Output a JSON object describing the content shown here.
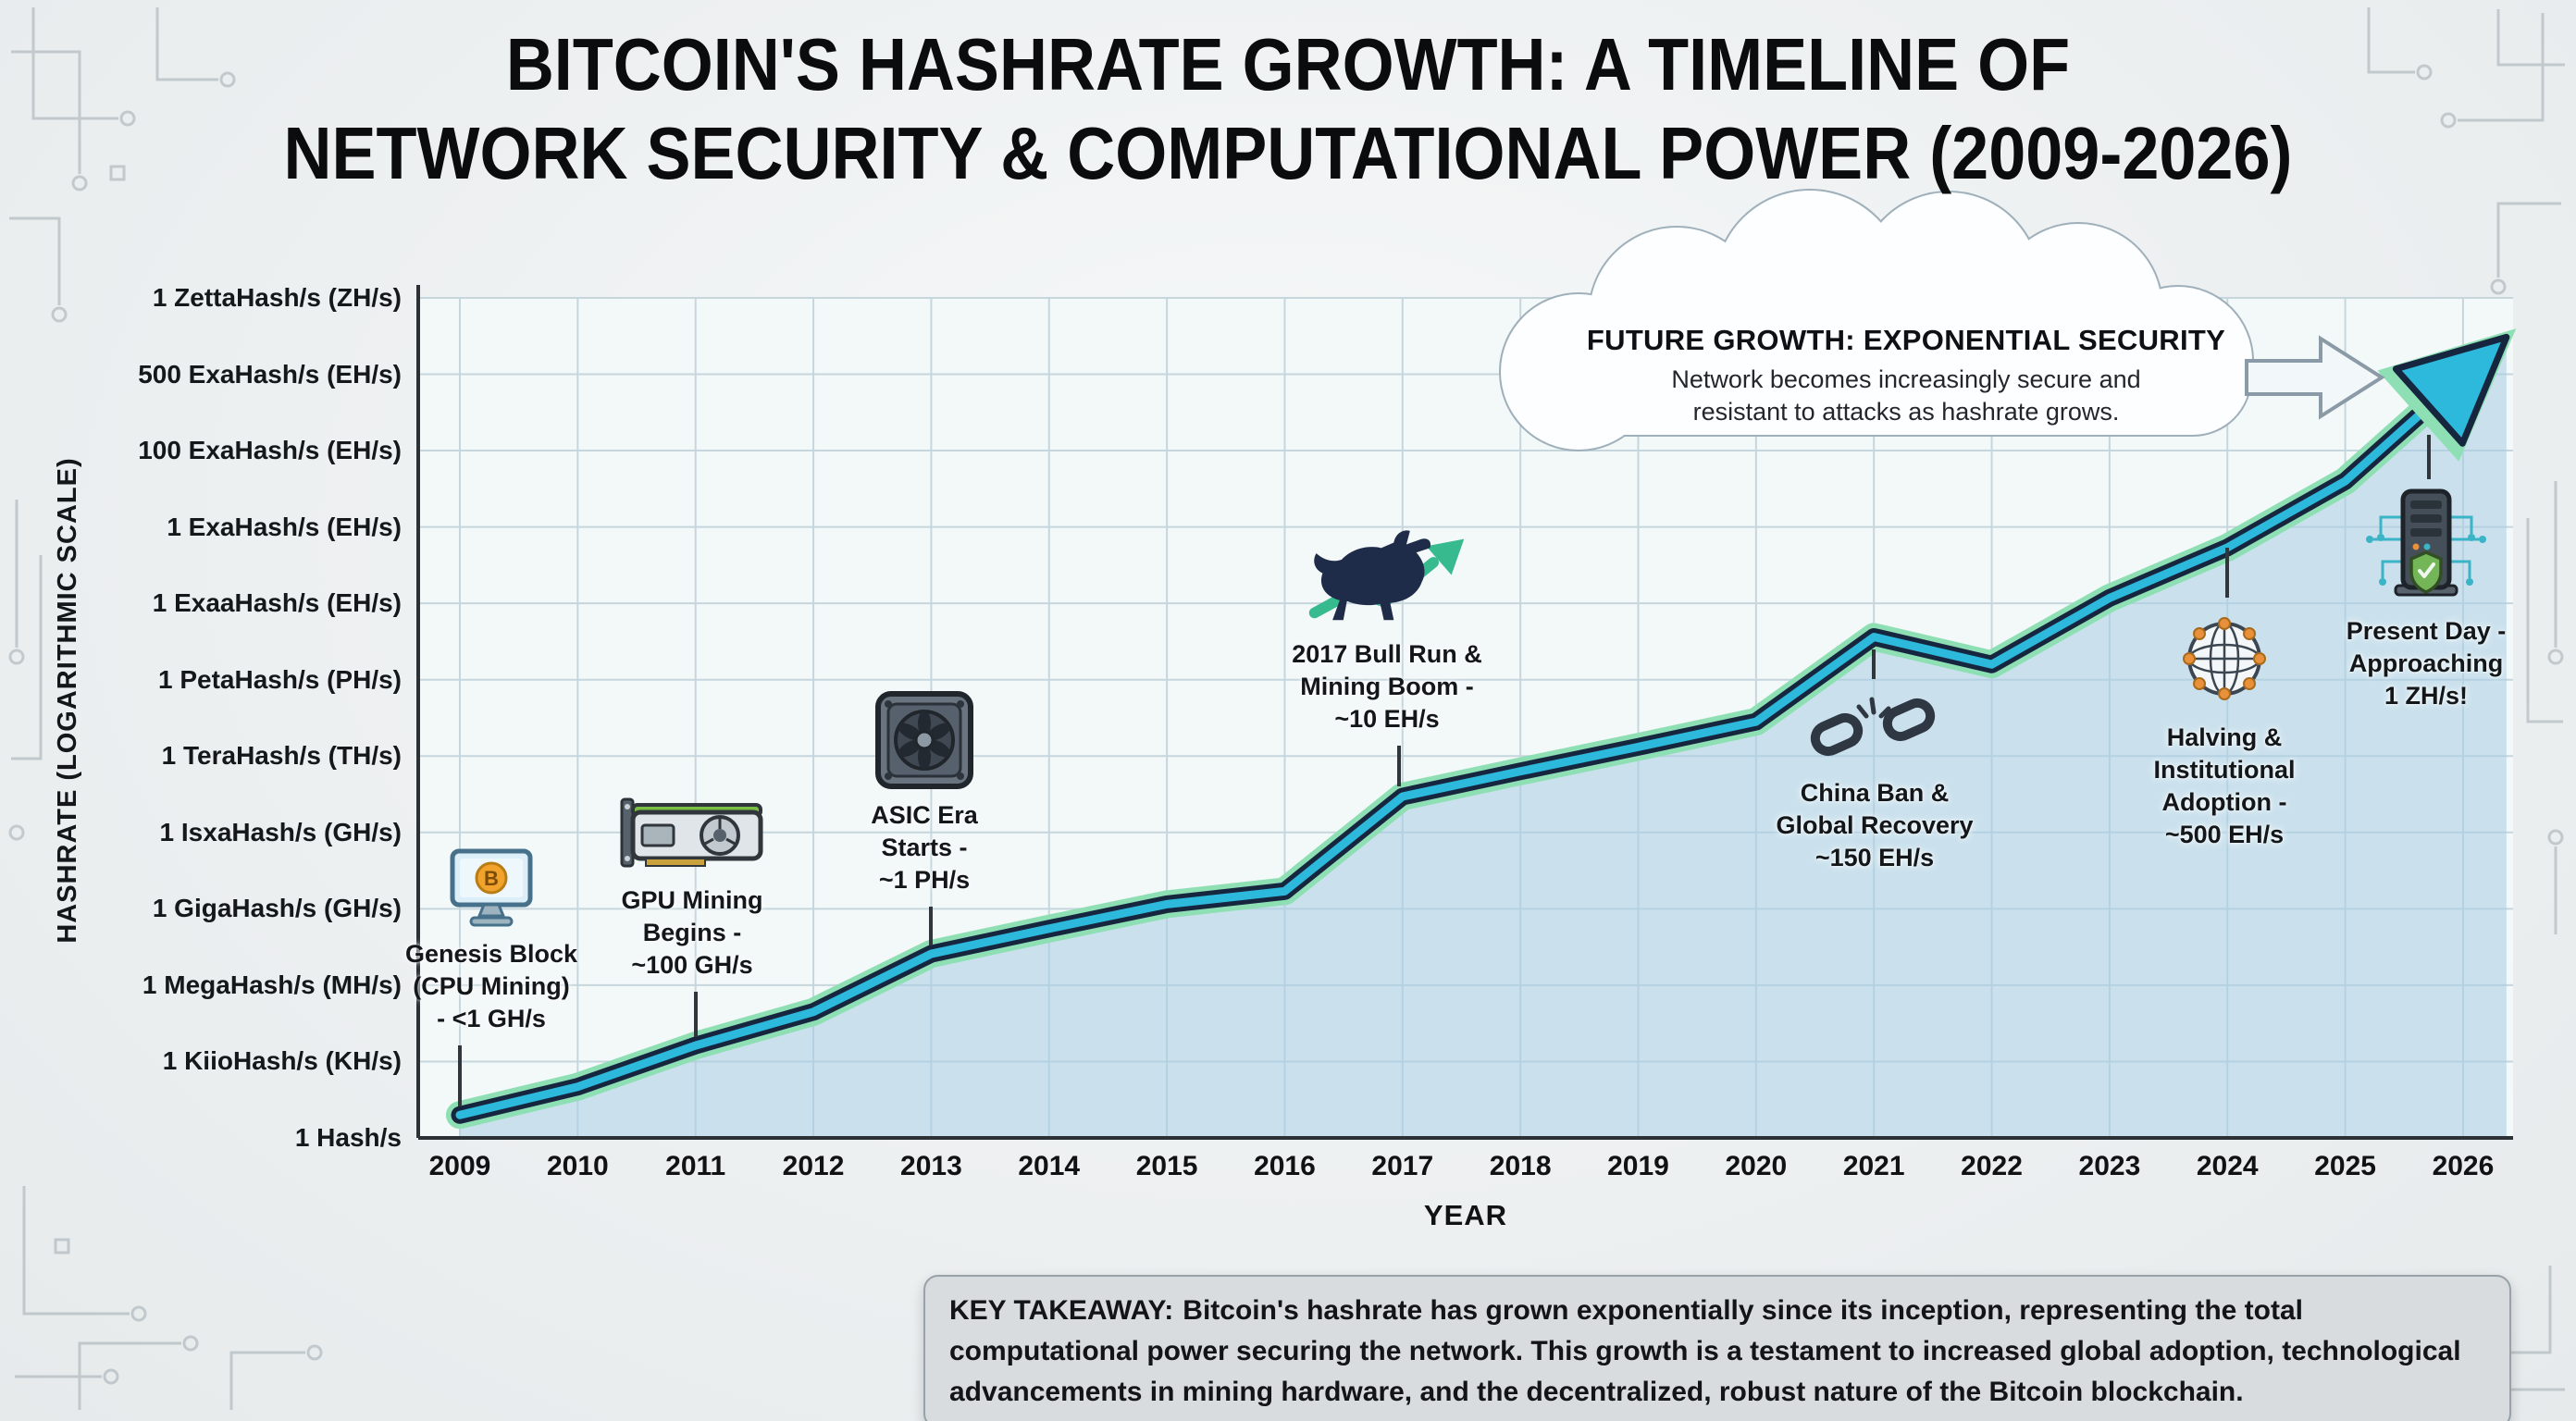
{
  "title": {
    "line1": "BITCOIN'S HASHRATE GROWTH: A TIMELINE OF",
    "line2": "NETWORK SECURITY & COMPUTATIONAL POWER (2009-2026)"
  },
  "y_axis_label": "HASHRATE (LOGARITHMIC SCALE)",
  "x_axis_label": "YEAR",
  "chart_data": {
    "type": "line",
    "title": "Bitcoin's Hashrate Growth: A Timeline of Network Security & Computational Power (2009-2026)",
    "xlabel": "YEAR",
    "ylabel": "HASHRATE (LOGARITHMIC SCALE)",
    "x_ticks": [
      "2009",
      "2010",
      "2011",
      "2012",
      "2013",
      "2014",
      "2015",
      "2016",
      "2017",
      "2018",
      "2019",
      "2020",
      "2021",
      "2022",
      "2023",
      "2024",
      "2025",
      "2026"
    ],
    "y_ticks": [
      "1 Hash/s",
      "1 KiioHash/s (KH/s)",
      "1 MegaHash/s (MH/s)",
      "1 GigaHash/s (GH/s)",
      "1 IsxaHash/s (GH/s)",
      "1 TeraHash/s (TH/s)",
      "1 PetaHash/s (PH/s)",
      "1 ExaaHash/s (EH/s)",
      "1 ExaHash/s (EH/s)",
      "100 ExaHash/s (EH/s)",
      "500 ExaHash/s (EH/s)",
      "1 ZettaHash/s (ZH/s)"
    ],
    "y_ticks_order": "bottom_to_top; level index 0 = 1 Hash/s baseline, 11 = 1 ZettaHash/s top gridline",
    "grid": true,
    "legend": "none",
    "points": [
      {
        "year": 2009,
        "level": 0.3
      },
      {
        "year": 2010,
        "level": 0.67
      },
      {
        "year": 2011,
        "level": 1.21
      },
      {
        "year": 2012,
        "level": 1.65
      },
      {
        "year": 2013,
        "level": 2.41
      },
      {
        "year": 2014,
        "level": 2.74
      },
      {
        "year": 2015,
        "level": 3.06
      },
      {
        "year": 2016,
        "level": 3.23
      },
      {
        "year": 2017,
        "level": 4.47
      },
      {
        "year": 2018,
        "level": 4.8
      },
      {
        "year": 2019,
        "level": 5.12
      },
      {
        "year": 2020,
        "level": 5.45
      },
      {
        "year": 2021,
        "level": 6.56
      },
      {
        "year": 2022,
        "level": 6.2
      },
      {
        "year": 2023,
        "level": 7.07
      },
      {
        "year": 2024,
        "level": 7.73
      },
      {
        "year": 2025,
        "level": 8.6
      },
      {
        "year": 2025.9,
        "level": 9.84
      }
    ],
    "annotated_values": {
      "2009": "<1 GH/s (Genesis Block, CPU mining)",
      "2011": "~100 GH/s (GPU mining begins)",
      "2013": "~1 PH/s (ASIC era starts)",
      "2017": "~10 EH/s (bull run & mining boom)",
      "2021": "~150 EH/s (China ban & global recovery dip)",
      "2024": "~500 EH/s (halving & institutional adoption)",
      "2026": "approaching 1 ZH/s (present day, arrow tip)"
    },
    "style": {
      "grid": "#c6d6dd",
      "plot_bg": "#f3f8f9",
      "area_fill": "rgba(168,205,227,0.55)",
      "line_glow": "#8ee0b4",
      "line_dark": "#17263f",
      "line_core": "#2cb9dc",
      "axis": "#2c3136"
    }
  },
  "milestones": [
    {
      "id": "genesis-block",
      "icon": "cpu-monitor-icon",
      "lines": [
        "Genesis Block",
        "(CPU Mining)",
        "- <1 GH/s"
      ]
    },
    {
      "id": "gpu-mining",
      "icon": "gpu-icon",
      "lines": [
        "GPU Mining",
        "Begins -",
        "~100 GH/s"
      ]
    },
    {
      "id": "asic-era",
      "icon": "asic-miner-icon",
      "lines": [
        "ASIC Era",
        "Starts -",
        "~1 PH/s"
      ]
    },
    {
      "id": "bull-run-2017",
      "icon": "bull-icon",
      "lines": [
        "2017 Bull Run &",
        "Mining Boom -",
        "~10 EH/s"
      ]
    },
    {
      "id": "china-ban",
      "icon": "broken-chain-icon",
      "lines": [
        "China Ban &",
        "Global Recovery",
        "~150 EH/s"
      ]
    },
    {
      "id": "halving-adoption",
      "icon": "globe-network-icon",
      "lines": [
        "Halving &",
        "Institutional",
        "Adoption -",
        "~500 EH/s"
      ]
    },
    {
      "id": "present-day",
      "icon": "server-shield-icon",
      "lines": [
        "Present Day -",
        "Approaching",
        "1 ZH/s!"
      ]
    }
  ],
  "cloud_callout": {
    "title": "FUTURE GROWTH: EXPONENTIAL SECURITY",
    "body_lines": [
      "Network becomes increasingly secure and",
      "resistant to attacks as hashrate grows."
    ]
  },
  "takeaway": {
    "label": "KEY TAKEAWAY:",
    "text": "Bitcoin's hashrate has grown exponentially since its inception, representing the total computational power securing the network. This growth is a testament to increased global adoption, technological advancements in mining hardware, and the decentralized, robust nature of the Bitcoin blockchain."
  },
  "colors": {
    "background": "#edf0f1",
    "title_text": "#0b0c0d",
    "takeaway_bg": "#d8dcde",
    "cloud_border": "#9fb0ba",
    "bitcoin_orange": "#f2a32c",
    "growth_green": "#36ba8e"
  }
}
